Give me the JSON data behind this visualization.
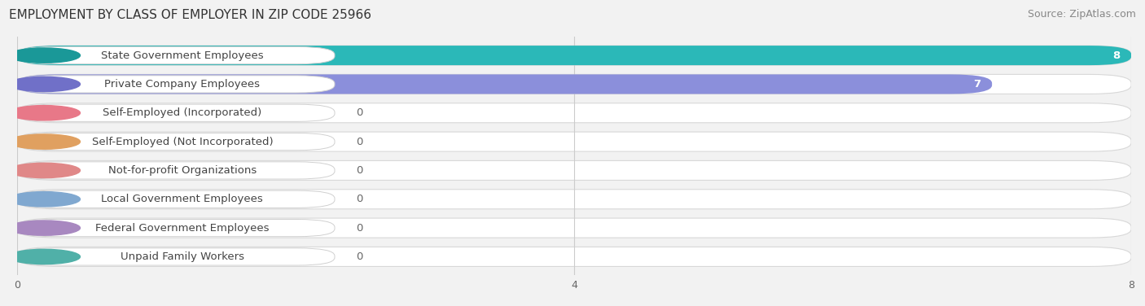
{
  "title": "EMPLOYMENT BY CLASS OF EMPLOYER IN ZIP CODE 25966",
  "source": "Source: ZipAtlas.com",
  "categories": [
    "State Government Employees",
    "Private Company Employees",
    "Self-Employed (Incorporated)",
    "Self-Employed (Not Incorporated)",
    "Not-for-profit Organizations",
    "Local Government Employees",
    "Federal Government Employees",
    "Unpaid Family Workers"
  ],
  "values": [
    8,
    7,
    0,
    0,
    0,
    0,
    0,
    0
  ],
  "bar_colors": [
    "#2bb8b8",
    "#8b8fdb",
    "#f0a0b0",
    "#f0c898",
    "#f0a8a8",
    "#a8c8e8",
    "#c8b0d8",
    "#7ecec8"
  ],
  "circle_colors": [
    "#1a9898",
    "#7070c8",
    "#e87888",
    "#e0a060",
    "#e08888",
    "#80a8d0",
    "#a888c0",
    "#50b0a8"
  ],
  "xlim": [
    0,
    8
  ],
  "xticks": [
    0,
    4,
    8
  ],
  "background_color": "#f2f2f2",
  "title_fontsize": 11,
  "source_fontsize": 9,
  "label_fontsize": 9.5,
  "value_fontsize": 9.5
}
